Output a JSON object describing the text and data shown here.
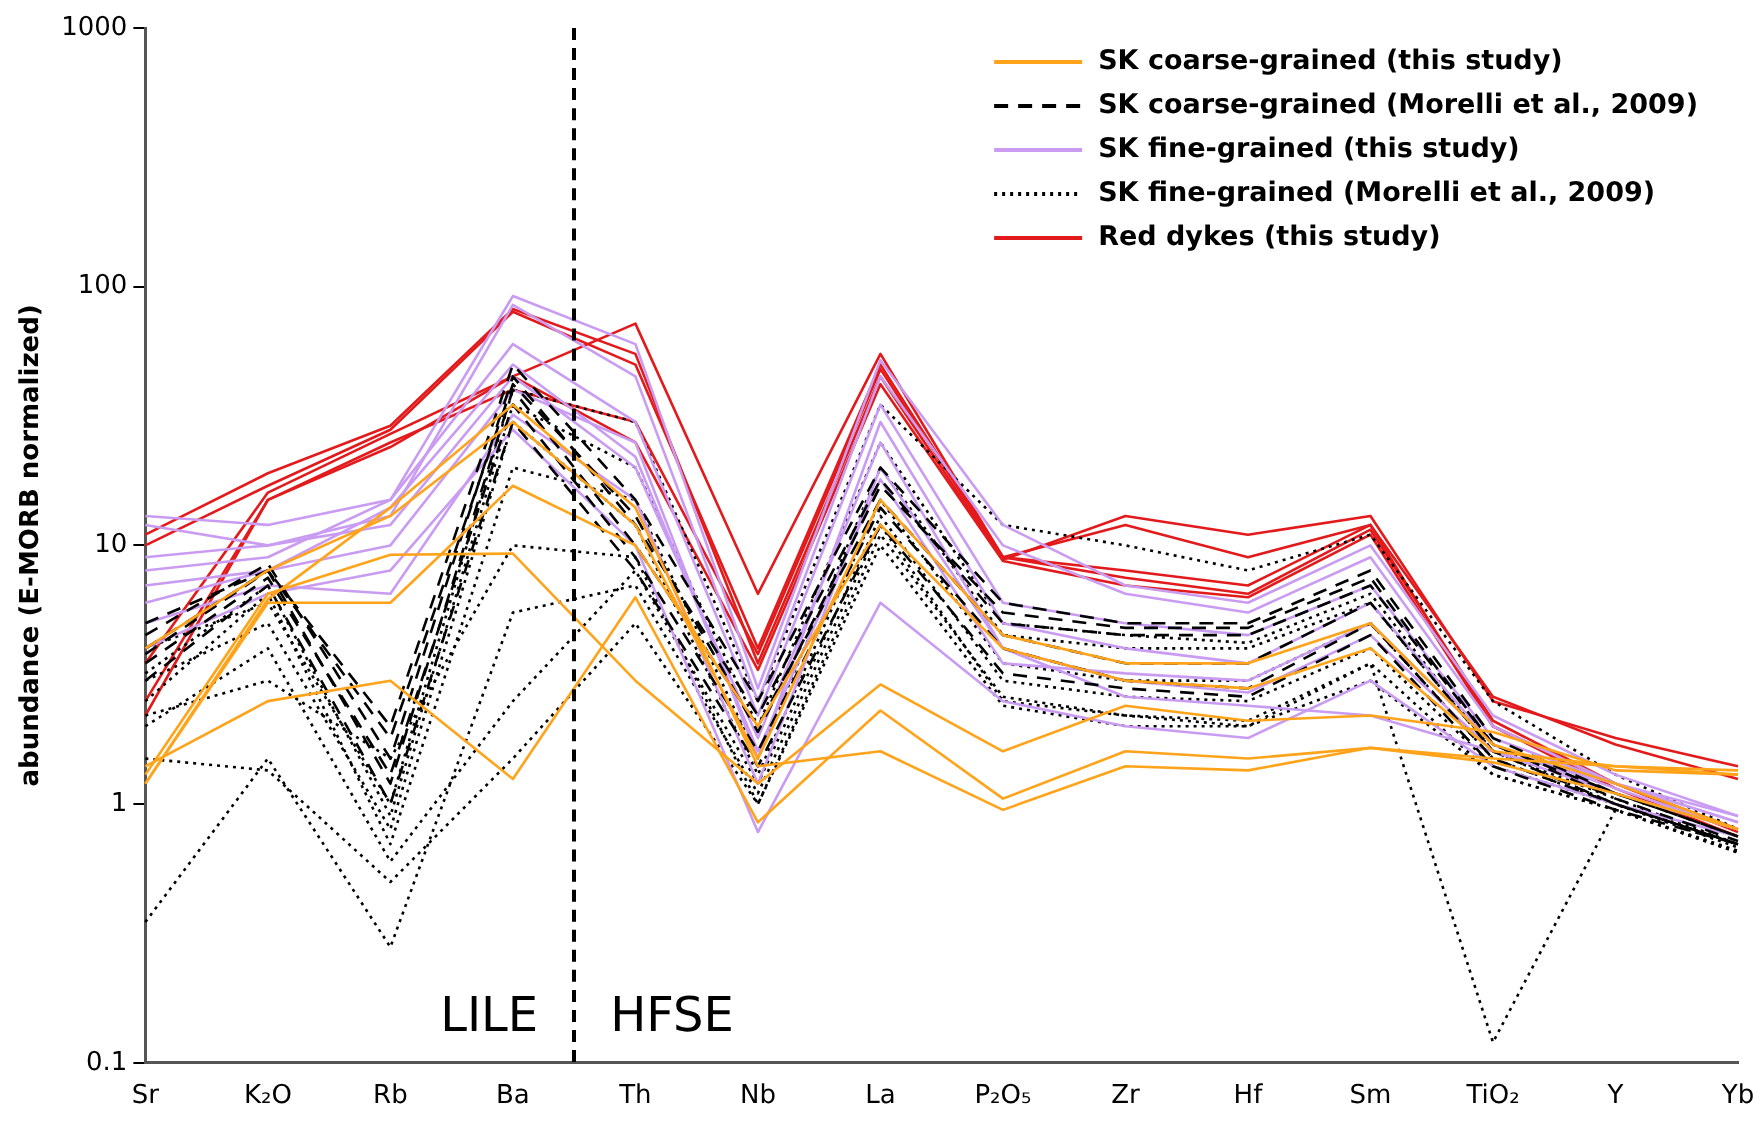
{
  "chart_data": {
    "type": "line",
    "ylabel": "abundance (E-MORB normalized)",
    "categories": [
      "Sr",
      "K₂O",
      "Rb",
      "Ba",
      "Th",
      "Nb",
      "La",
      "P₂O₅",
      "Zr",
      "Hf",
      "Sm",
      "TiO₂",
      "Y",
      "Yb"
    ],
    "log": "y",
    "ylim": [
      0.1,
      1000
    ],
    "yticks": [
      0.1,
      1,
      10,
      100,
      1000
    ],
    "grid": false,
    "legend": "top right",
    "marker": "none",
    "annotations": [
      "LILE",
      "HFSE"
    ],
    "series": [
      {
        "name": "SK coarse-grained (this study)",
        "color": "#ffa31a",
        "line_style": "solid",
        "values": [
          1.2,
          6,
          6,
          17,
          10,
          2,
          12,
          4,
          3,
          2.8,
          4,
          1.6,
          1.4,
          1.3
        ]
      },
      {
        "color": "#ffa31a",
        "line_style": "solid",
        "values": [
          1.3,
          6.5,
          9.2,
          9.3,
          3,
          1.2,
          2.9,
          1.6,
          2.4,
          2.1,
          2.2,
          1.9,
          1.35,
          1.3
        ]
      },
      {
        "color": "#ffa31a",
        "line_style": "solid",
        "values": [
          1.4,
          2.5,
          3,
          1.25,
          6.3,
          0.85,
          2.3,
          1.05,
          1.6,
          1.5,
          1.65,
          1.5,
          1.4,
          1.35
        ]
      },
      {
        "color": "#ffa31a",
        "line_style": "solid",
        "values": [
          1.2,
          6.2,
          14,
          35,
          14,
          1.4,
          1.6,
          0.95,
          1.4,
          1.35,
          1.65,
          1.45,
          1.1,
          0.8
        ]
      },
      {
        "color": "#ffa31a",
        "line_style": "solid",
        "values": [
          4,
          8,
          13,
          30,
          12,
          1.5,
          15,
          4.5,
          3.5,
          3.5,
          5,
          1.7,
          1.2,
          0.8
        ]
      },
      {
        "name": "SK coarse-grained (Morelli et al., 2009)",
        "color": "#000000",
        "line_style": "dashed",
        "values": [
          5,
          8,
          2,
          50,
          15,
          2.5,
          20,
          6,
          5,
          5,
          8,
          1.8,
          1.1,
          0.75
        ]
      },
      {
        "color": "#000000",
        "line_style": "dashed",
        "values": [
          4.5,
          8.5,
          1.5,
          45,
          12,
          2.2,
          18,
          5,
          4.5,
          4.5,
          7,
          1.7,
          1.1,
          0.75
        ]
      },
      {
        "color": "#000000",
        "line_style": "dashed",
        "values": [
          4,
          8,
          1.2,
          40,
          10,
          2,
          15,
          4.5,
          3.5,
          3.5,
          6,
          1.6,
          1,
          0.7
        ]
      },
      {
        "color": "#000000",
        "line_style": "dashed",
        "values": [
          3.5,
          7.5,
          1.3,
          35,
          9,
          1.6,
          14,
          4,
          3,
          2.8,
          5,
          1.5,
          1,
          0.7
        ]
      },
      {
        "color": "#000000",
        "line_style": "dashed",
        "values": [
          3,
          7,
          1,
          30,
          8,
          1.4,
          12,
          3.2,
          2.8,
          2.6,
          4.5,
          1.4,
          0.95,
          0.7
        ]
      },
      {
        "color": "#000000",
        "line_style": "dashed",
        "values": [
          3.8,
          8,
          1.8,
          42,
          13,
          1.9,
          17,
          5.5,
          4.8,
          4.8,
          7.5,
          1.7,
          1.05,
          0.72
        ]
      },
      {
        "name": "SK fine-grained (this study)",
        "color": "#c99cf2",
        "line_style": "solid",
        "values": [
          13,
          12,
          15,
          92,
          60,
          2.8,
          52,
          12,
          7,
          6,
          10,
          2.2,
          1.3,
          0.9
        ]
      },
      {
        "color": "#c99cf2",
        "line_style": "solid",
        "values": [
          12,
          10,
          13,
          85,
          45,
          2.5,
          45,
          10,
          6.5,
          5.5,
          9,
          2,
          1.2,
          0.85
        ]
      },
      {
        "color": "#c99cf2",
        "line_style": "solid",
        "values": [
          8,
          9,
          15,
          60,
          30,
          2.2,
          35,
          6,
          5,
          4.5,
          7,
          1.8,
          1.2,
          0.85
        ]
      },
      {
        "color": "#c99cf2",
        "line_style": "solid",
        "values": [
          7,
          8,
          10,
          40,
          25,
          1.5,
          30,
          5,
          4,
          3.5,
          6,
          1.7,
          1.1,
          0.8
        ]
      },
      {
        "color": "#c99cf2",
        "line_style": "solid",
        "values": [
          5,
          7,
          6.5,
          32,
          15,
          1.2,
          20,
          4,
          3,
          2.7,
          4.5,
          1.6,
          1.1,
          0.8
        ]
      },
      {
        "color": "#c99cf2",
        "line_style": "solid",
        "values": [
          4,
          6.5,
          8,
          28,
          10,
          0.78,
          6,
          2.5,
          2,
          1.8,
          3,
          1.4,
          1,
          0.75
        ]
      },
      {
        "color": "#c99cf2",
        "line_style": "solid",
        "values": [
          9,
          10,
          12,
          45,
          20,
          1.8,
          25,
          4,
          2.6,
          2.4,
          2.2,
          1.6,
          1.2,
          0.9
        ]
      },
      {
        "color": "#c99cf2",
        "line_style": "solid",
        "values": [
          6,
          8,
          14,
          50,
          22,
          1.6,
          18,
          3.5,
          3.2,
          3,
          5,
          1.7,
          1.15,
          0.8
        ]
      },
      {
        "name": "SK fine-grained (Morelli et al., 2009)",
        "color": "#000000",
        "line_style": "dotted",
        "values": [
          0.35,
          1.5,
          0.28,
          5.5,
          7,
          1.1,
          12,
          2.5,
          2.2,
          2,
          3.5,
          0.12,
          0.95,
          0.65
        ]
      },
      {
        "color": "#000000",
        "line_style": "dotted",
        "values": [
          1.5,
          1.35,
          0.5,
          1.5,
          5,
          1,
          10,
          2.4,
          2,
          2,
          3,
          1.3,
          0.95,
          0.65
        ]
      },
      {
        "color": "#000000",
        "line_style": "dotted",
        "values": [
          2,
          4,
          0.6,
          2.5,
          8,
          1.2,
          13,
          3,
          2.6,
          2.5,
          4,
          1.4,
          1,
          0.68
        ]
      },
      {
        "color": "#000000",
        "line_style": "dotted",
        "values": [
          3,
          5,
          0.8,
          30,
          12,
          1.3,
          15,
          3.5,
          3,
          3,
          5,
          1.5,
          1,
          0.7
        ]
      },
      {
        "color": "#000000",
        "line_style": "dotted",
        "values": [
          4,
          6,
          1,
          40,
          30,
          2.5,
          35,
          12,
          10,
          8,
          11,
          2.5,
          1.3,
          0.8
        ]
      },
      {
        "color": "#000000",
        "line_style": "dotted",
        "values": [
          2.5,
          6.5,
          0.7,
          20,
          15,
          1.5,
          20,
          4.5,
          4,
          4,
          6,
          1.6,
          1,
          0.7
        ]
      },
      {
        "color": "#000000",
        "line_style": "dotted",
        "values": [
          3.2,
          7,
          0.9,
          35,
          20,
          2,
          25,
          5,
          4.5,
          4.2,
          6.5,
          1.6,
          1.05,
          0.7
        ]
      },
      {
        "color": "#000000",
        "line_style": "dotted",
        "values": [
          2.2,
          3,
          1.5,
          10,
          9,
          1,
          11,
          2.6,
          2.2,
          2.1,
          3.5,
          1.3,
          0.95,
          0.66
        ]
      },
      {
        "name": "Red dykes (this study)",
        "color": "#e31a1c",
        "line_style": "solid",
        "values": [
          11,
          19,
          29,
          82,
          55,
          3.5,
          45,
          8.8,
          13,
          11,
          13,
          2.5,
          1.8,
          1.4
        ]
      },
      {
        "color": "#e31a1c",
        "line_style": "solid",
        "values": [
          10,
          17,
          28,
          80,
          50,
          4,
          50,
          9,
          12,
          9,
          12,
          2.6,
          1.7,
          1.25
        ]
      },
      {
        "color": "#e31a1c",
        "line_style": "solid",
        "values": [
          3.5,
          16,
          27,
          45,
          72,
          6.5,
          55,
          9,
          8,
          7,
          12,
          2,
          1.2,
          0.8
        ]
      },
      {
        "color": "#e31a1c",
        "line_style": "solid",
        "values": [
          2.5,
          15,
          25,
          40,
          30,
          3.8,
          48,
          9,
          7.5,
          6.5,
          11.5,
          2.1,
          1.2,
          0.78
        ]
      },
      {
        "color": "#e31a1c",
        "line_style": "solid",
        "values": [
          2.2,
          15,
          24,
          45,
          25,
          3.3,
          42,
          8.7,
          7,
          6.3,
          11,
          2,
          1.15,
          0.75
        ]
      }
    ]
  }
}
